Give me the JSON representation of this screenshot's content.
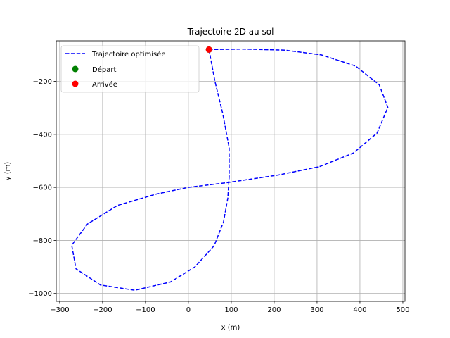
{
  "chart_data": {
    "type": "line",
    "title": "Trajectoire 2D au sol",
    "xlabel": "x (m)",
    "ylabel": "y (m)",
    "xlim": [
      -308,
      505
    ],
    "ylim": [
      -1030,
      -47
    ],
    "xticks": [
      -300,
      -200,
      -100,
      0,
      100,
      200,
      300,
      400,
      500
    ],
    "yticks": [
      -1000,
      -800,
      -600,
      -400,
      -200
    ],
    "grid": true,
    "legend_position": "top-left",
    "series": [
      {
        "name": "Trajectoire optimisée",
        "style": "dashed",
        "color": "#0000ff",
        "x": [
          48,
          62,
          80,
          95,
          95,
          92,
          82,
          60,
          15,
          -42,
          -125,
          -205,
          -262,
          -272,
          -235,
          -165,
          -75,
          0,
          90,
          210,
          305,
          385,
          440,
          465,
          445,
          390,
          310,
          225,
          130,
          48
        ],
        "y": [
          -80,
          -200,
          -320,
          -450,
          -560,
          -640,
          -730,
          -820,
          -900,
          -957,
          -988,
          -968,
          -907,
          -818,
          -738,
          -668,
          -625,
          -600,
          -582,
          -553,
          -522,
          -470,
          -395,
          -298,
          -213,
          -142,
          -100,
          -82,
          -78,
          -80
        ]
      },
      {
        "name": "Départ",
        "style": "marker",
        "color": "#008000",
        "x": [
          48
        ],
        "y": [
          -80
        ]
      },
      {
        "name": "Arrivée",
        "style": "marker",
        "color": "#ff0000",
        "x": [
          48
        ],
        "y": [
          -80
        ]
      }
    ]
  }
}
